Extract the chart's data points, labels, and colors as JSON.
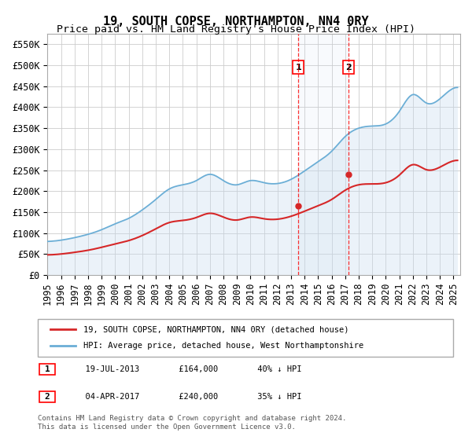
{
  "title": "19, SOUTH COPSE, NORTHAMPTON, NN4 0RY",
  "subtitle": "Price paid vs. HM Land Registry's House Price Index (HPI)",
  "ylabel_ticks": [
    "£0",
    "£50K",
    "£100K",
    "£150K",
    "£200K",
    "£250K",
    "£300K",
    "£350K",
    "£400K",
    "£450K",
    "£500K",
    "£550K"
  ],
  "ytick_values": [
    0,
    50000,
    100000,
    150000,
    200000,
    250000,
    300000,
    350000,
    400000,
    450000,
    500000,
    550000
  ],
  "ylim": [
    0,
    575000
  ],
  "xlim_start": 1995.0,
  "xlim_end": 2025.5,
  "hpi_color": "#6baed6",
  "price_color": "#d62728",
  "hpi_fill_color": "#c6dbef",
  "marker1_date": 2013.54,
  "marker2_date": 2017.25,
  "marker1_price": 164000,
  "marker2_price": 240000,
  "legend_label1": "19, SOUTH COPSE, NORTHAMPTON, NN4 0RY (detached house)",
  "legend_label2": "HPI: Average price, detached house, West Northamptonshire",
  "anno1_label": "1",
  "anno2_label": "2",
  "anno1_date_str": "19-JUL-2013",
  "anno1_price_str": "£164,000",
  "anno1_pct_str": "40% ↓ HPI",
  "anno2_date_str": "04-APR-2017",
  "anno2_price_str": "£240,000",
  "anno2_pct_str": "35% ↓ HPI",
  "footnote": "Contains HM Land Registry data © Crown copyright and database right 2024.\nThis data is licensed under the Open Government Licence v3.0.",
  "background_color": "#ffffff",
  "grid_color": "#cccccc",
  "title_fontsize": 11,
  "subtitle_fontsize": 9.5,
  "tick_fontsize": 8.5
}
